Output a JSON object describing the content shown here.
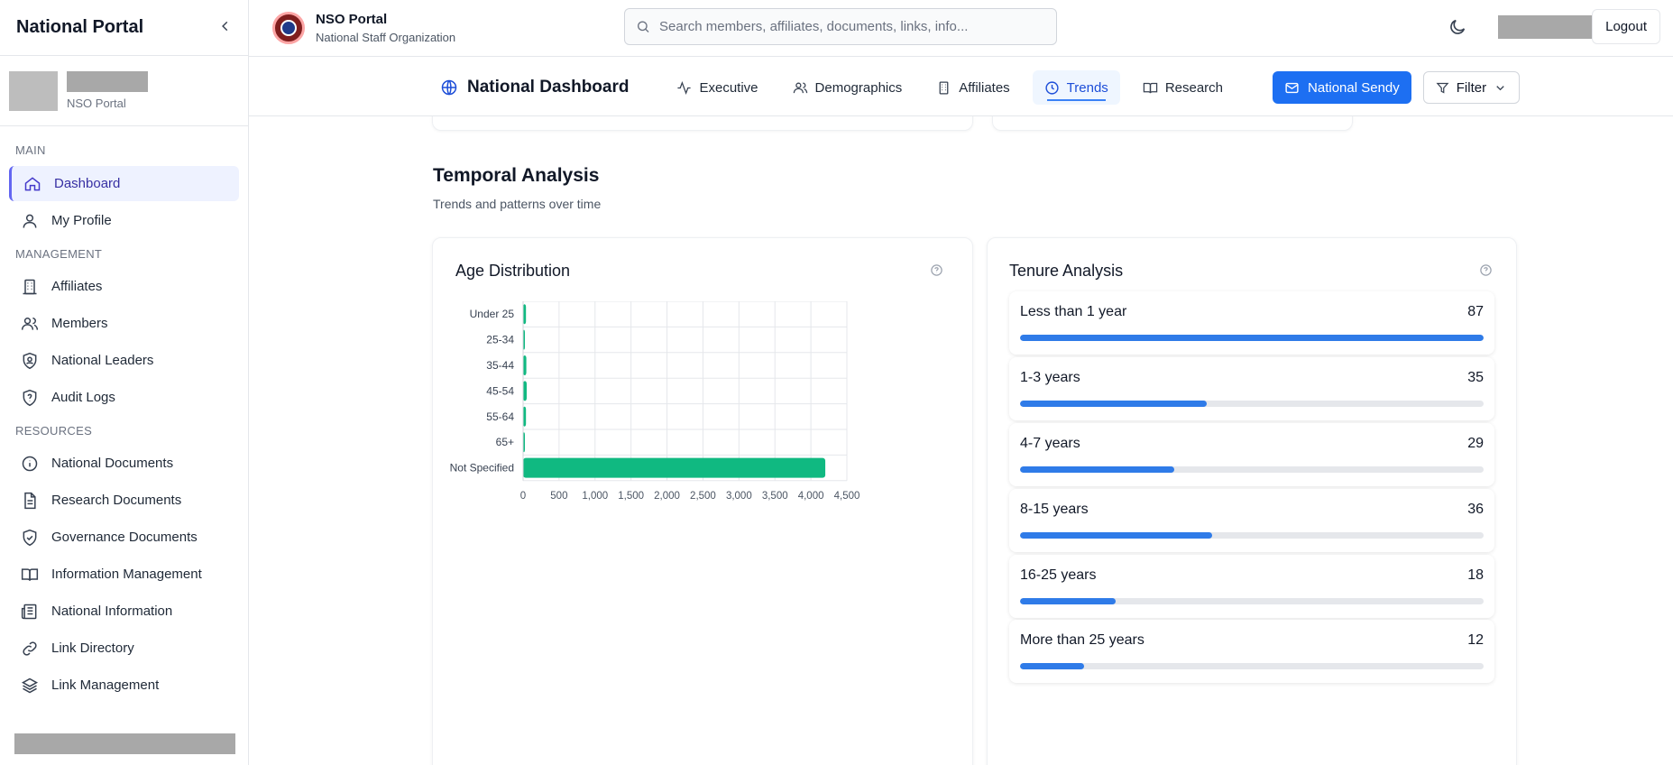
{
  "sidebar": {
    "title": "National Portal",
    "user_sub": "NSO Portal",
    "sections": {
      "main": "MAIN",
      "management": "MANAGEMENT",
      "resources": "RESOURCES"
    },
    "items": {
      "dashboard": "Dashboard",
      "profile": "My Profile",
      "affiliates": "Affiliates",
      "members": "Members",
      "leaders": "National Leaders",
      "audit": "Audit Logs",
      "natdocs": "National Documents",
      "research": "Research Documents",
      "governance": "Governance Documents",
      "infomgmt": "Information Management",
      "natinfo": "National Information",
      "linkdir": "Link Directory",
      "linkmgmt": "Link Management"
    }
  },
  "header": {
    "brand_name": "NSO Portal",
    "brand_sub": "National Staff Organization",
    "search_placeholder": "Search members, affiliates, documents, links, info...",
    "logout": "Logout"
  },
  "nav": {
    "title": "National Dashboard",
    "tabs": {
      "executive": "Executive",
      "demographics": "Demographics",
      "affiliates": "Affiliates",
      "trends": "Trends",
      "research": "Research"
    },
    "sendy": "National Sendy",
    "filter": "Filter"
  },
  "main": {
    "section_title": "Temporal Analysis",
    "section_sub": "Trends and patterns over time",
    "age_card_title": "Age Distribution",
    "tenure_card_title": "Tenure Analysis",
    "tenure": [
      {
        "label": "Less than 1 year",
        "value": "87",
        "fraction": 1.0
      },
      {
        "label": "1-3 years",
        "value": "35",
        "fraction": 0.402
      },
      {
        "label": "4-7 years",
        "value": "29",
        "fraction": 0.333
      },
      {
        "label": "8-15 years",
        "value": "36",
        "fraction": 0.414
      },
      {
        "label": "16-25 years",
        "value": "18",
        "fraction": 0.207
      },
      {
        "label": "More than 25 years",
        "value": "12",
        "fraction": 0.138
      }
    ]
  },
  "colors": {
    "bar": "#10b981",
    "progress": "#2f7be8",
    "accent": "#1d6ff2"
  },
  "chart_data": {
    "type": "bar",
    "orientation": "horizontal",
    "categories": [
      "Under 25",
      "25-34",
      "35-44",
      "45-54",
      "55-64",
      "65+",
      "Not Specified"
    ],
    "values": [
      40,
      25,
      45,
      50,
      40,
      10,
      4200
    ],
    "xlim": [
      0,
      4500
    ],
    "xticks": [
      "0",
      "500",
      "1,000",
      "1,500",
      "2,000",
      "2,500",
      "3,000",
      "3,500",
      "4,000",
      "4,500"
    ],
    "grid": true
  }
}
